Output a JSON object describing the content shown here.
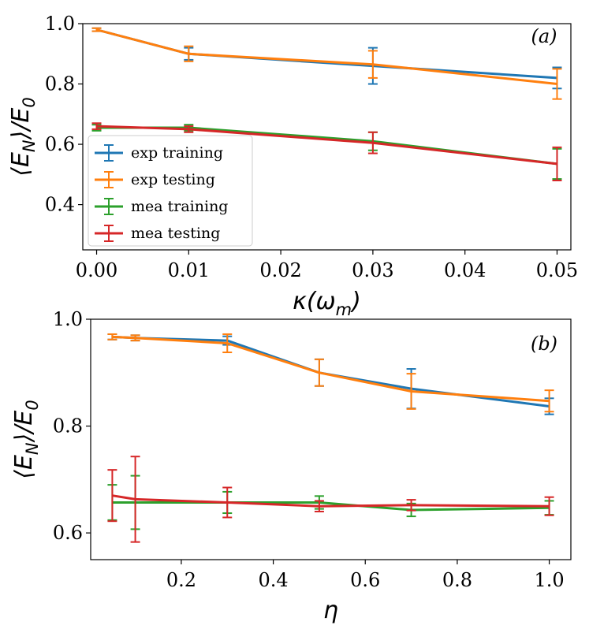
{
  "colors": {
    "exp_training": "#1f77b4",
    "exp_testing": "#ff7f0e",
    "mea_training": "#2ca02c",
    "mea_testing": "#d62728"
  },
  "chart_data": [
    {
      "type": "line",
      "panel_label": "(a)",
      "xlabel": "κ(ω_m)",
      "ylabel": "⟨E_N⟩/E_0",
      "xlim": [
        -0.0015,
        0.0515
      ],
      "ylim": [
        0.25,
        1.0
      ],
      "xticks": [
        "0.00",
        "0.01",
        "0.02",
        "0.03",
        "0.04",
        "0.05"
      ],
      "yticks": [
        "0.4",
        "0.6",
        "0.8",
        "1.0"
      ],
      "legend": "center-left",
      "x": [
        0.0,
        0.01,
        0.03,
        0.05
      ],
      "series": [
        {
          "name": "exp training",
          "color": "#1f77b4",
          "values": [
            0.98,
            0.9,
            0.86,
            0.82
          ],
          "errors": [
            0.005,
            0.02,
            0.06,
            0.035
          ]
        },
        {
          "name": "exp testing",
          "color": "#ff7f0e",
          "values": [
            0.98,
            0.9,
            0.865,
            0.8
          ],
          "errors": [
            0.005,
            0.025,
            0.045,
            0.05
          ]
        },
        {
          "name": "mea training",
          "color": "#2ca02c",
          "values": [
            0.655,
            0.655,
            0.61,
            0.535
          ],
          "errors": [
            0.01,
            0.01,
            0.03,
            0.05
          ]
        },
        {
          "name": "mea testing",
          "color": "#d62728",
          "values": [
            0.66,
            0.65,
            0.605,
            0.535
          ],
          "errors": [
            0.01,
            0.01,
            0.035,
            0.055
          ]
        }
      ]
    },
    {
      "type": "line",
      "panel_label": "(b)",
      "xlabel": "η",
      "ylabel": "⟨E_N⟩/E_0",
      "xlim": [
        0.003,
        1.047
      ],
      "ylim": [
        0.55,
        1.0
      ],
      "xticks": [
        "0.2",
        "0.4",
        "0.6",
        "0.8",
        "1.0"
      ],
      "yticks": [
        "0.6",
        "0.8",
        "1.0"
      ],
      "x": [
        0.05,
        0.1,
        0.3,
        0.5,
        0.7,
        1.0
      ],
      "series": [
        {
          "name": "exp training",
          "color": "#1f77b4",
          "values": [
            0.967,
            0.965,
            0.96,
            0.9,
            0.87,
            0.837
          ],
          "errors": [
            0.005,
            0.005,
            0.008,
            0.025,
            0.037,
            0.015
          ]
        },
        {
          "name": "exp testing",
          "color": "#ff7f0e",
          "values": [
            0.967,
            0.965,
            0.955,
            0.9,
            0.865,
            0.847
          ],
          "errors": [
            0.005,
            0.005,
            0.017,
            0.025,
            0.033,
            0.02
          ]
        },
        {
          "name": "mea training",
          "color": "#2ca02c",
          "values": [
            0.657,
            0.657,
            0.657,
            0.657,
            0.643,
            0.647
          ],
          "errors": [
            0.033,
            0.05,
            0.02,
            0.012,
            0.012,
            0.013
          ]
        },
        {
          "name": "mea testing",
          "color": "#d62728",
          "values": [
            0.67,
            0.663,
            0.657,
            0.65,
            0.652,
            0.65
          ],
          "errors": [
            0.048,
            0.08,
            0.028,
            0.01,
            0.01,
            0.017
          ]
        }
      ]
    }
  ]
}
